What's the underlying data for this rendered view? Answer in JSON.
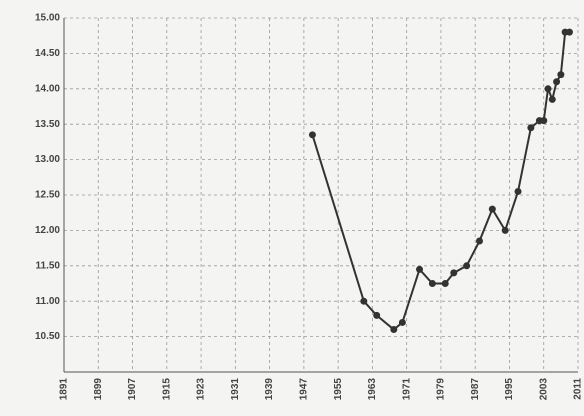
{
  "chart_data": {
    "type": "line",
    "x": [
      1949,
      1961,
      1964,
      1968,
      1970,
      1974,
      1977,
      1980,
      1982,
      1985,
      1988,
      1991,
      1994,
      1997,
      2000,
      2002,
      2003,
      2004,
      2005,
      2006,
      2007,
      2008,
      2009
    ],
    "series": [
      {
        "color": "#333333",
        "values": [
          13.35,
          11.0,
          10.8,
          10.6,
          10.7,
          11.45,
          11.25,
          11.25,
          11.4,
          11.5,
          11.85,
          12.3,
          12.0,
          12.55,
          13.45,
          13.55,
          13.55,
          14.0,
          13.85,
          14.1,
          14.2,
          14.8,
          14.8
        ]
      }
    ],
    "xlim": [
      1891,
      2011
    ],
    "xticks": [
      1891,
      1899,
      1907,
      1915,
      1923,
      1931,
      1939,
      1947,
      1955,
      1963,
      1971,
      1979,
      1987,
      1995,
      2003,
      2011
    ],
    "ylim": [
      10,
      15
    ],
    "yticks": [
      {
        "value": 10.5,
        "label": "10.50"
      },
      {
        "value": 11,
        "label": "11.00"
      },
      {
        "value": 11.5,
        "label": "11.50"
      },
      {
        "value": 12,
        "label": "12.00"
      },
      {
        "value": 12.5,
        "label": "12.50"
      },
      {
        "value": 13,
        "label": "13.00"
      },
      {
        "value": 13.5,
        "label": "13.50"
      },
      {
        "value": 14,
        "label": "14.00"
      },
      {
        "value": 14.5,
        "label": "14.50"
      },
      {
        "value": 15,
        "label": "15.00"
      }
    ],
    "grid": true
  }
}
